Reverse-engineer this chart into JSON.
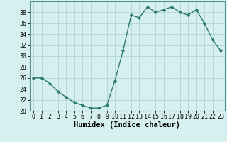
{
  "x": [
    0,
    1,
    2,
    3,
    4,
    5,
    6,
    7,
    8,
    9,
    10,
    11,
    12,
    13,
    14,
    15,
    16,
    17,
    18,
    19,
    20,
    21,
    22,
    23
  ],
  "y": [
    26,
    26,
    25,
    23.5,
    22.5,
    21.5,
    21,
    20.5,
    20.5,
    21,
    25.5,
    31,
    37.5,
    37,
    39,
    38,
    38.5,
    39,
    38,
    37.5,
    38.5,
    36,
    33,
    31
  ],
  "line_color": "#2d7a6e",
  "marker": "D",
  "marker_size": 2.2,
  "bg_color": "#d6f0f0",
  "grid_color": "#b8d8d8",
  "xlabel": "Humidex (Indice chaleur)",
  "ylim": [
    20,
    40
  ],
  "xlim": [
    -0.5,
    23.5
  ],
  "yticks": [
    20,
    22,
    24,
    26,
    28,
    30,
    32,
    34,
    36,
    38
  ],
  "xticks": [
    0,
    1,
    2,
    3,
    4,
    5,
    6,
    7,
    8,
    9,
    10,
    11,
    12,
    13,
    14,
    15,
    16,
    17,
    18,
    19,
    20,
    21,
    22,
    23
  ],
  "tick_fontsize": 6.0,
  "xlabel_fontsize": 7.5,
  "xlabel_fontweight": "bold"
}
